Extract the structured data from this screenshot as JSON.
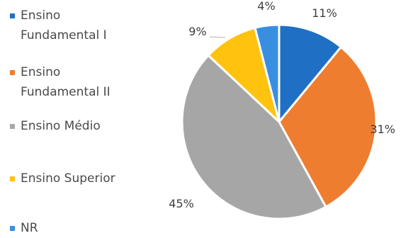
{
  "chart_data": {
    "type": "pie",
    "title": "",
    "legend_placement": "left",
    "slices": [
      {
        "name": "Ensino Fundamental I",
        "value": 11,
        "label": "11%",
        "color": "#1f6fc5"
      },
      {
        "name": "Ensino Fundamental II",
        "value": 31,
        "label": "31%",
        "color": "#ee7d30"
      },
      {
        "name": "Ensino Médio",
        "value": 45,
        "label": "45%",
        "color": "#a6a6a6"
      },
      {
        "name": "Ensino Superior",
        "value": 9,
        "label": "9%",
        "color": "#ffc20f"
      },
      {
        "name": "NR",
        "value": 4,
        "label": "4%",
        "color": "#3a8ee0"
      }
    ]
  },
  "legend": {
    "items": [
      {
        "line1": "Ensino",
        "line2": "Fundamental I",
        "color": "#1f6fc5"
      },
      {
        "line1": "Ensino",
        "line2": "Fundamental II",
        "color": "#ee7d30"
      },
      {
        "line1": "Ensino Médio",
        "line2": "",
        "color": "#a6a6a6"
      },
      {
        "line1": "Ensino Superior",
        "line2": "",
        "color": "#ffc20f"
      },
      {
        "line1": "NR",
        "line2": "",
        "color": "#3a8ee0"
      }
    ]
  }
}
